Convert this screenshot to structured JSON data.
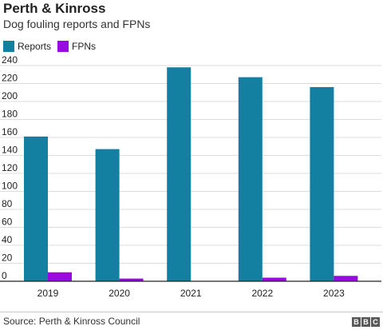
{
  "title": "Perth & Kinross",
  "subtitle": "Dog fouling reports and FPNs",
  "source": "Source: Perth & Kinross Council",
  "logo": "BBC",
  "colors": {
    "reports": "#1380A1",
    "fpns": "#990AE3",
    "grid": "#dcdcdc",
    "axis": "#222222"
  },
  "chart_data": {
    "type": "bar",
    "categories": [
      "2019",
      "2020",
      "2021",
      "2022",
      "2023"
    ],
    "series": [
      {
        "name": "Reports",
        "values": [
          161,
          147,
          238,
          227,
          216
        ]
      },
      {
        "name": "FPNs",
        "values": [
          10,
          3,
          0,
          4,
          6
        ]
      }
    ],
    "yticks": [
      0,
      20,
      40,
      60,
      80,
      100,
      120,
      140,
      160,
      180,
      200,
      220,
      240
    ],
    "ylim": [
      0,
      240
    ],
    "grid": true,
    "legend": "top-left"
  }
}
